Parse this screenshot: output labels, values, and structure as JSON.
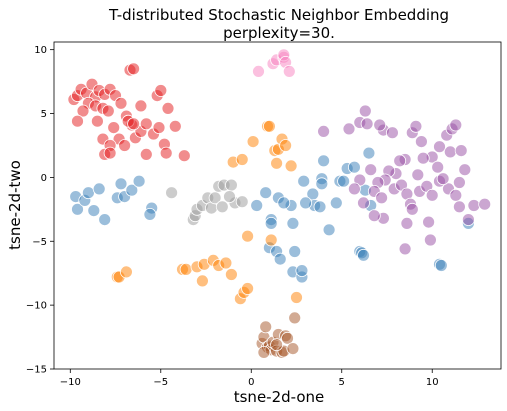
{
  "chart_data": {
    "type": "scatter",
    "title": "T-distributed Stochastic Neighbor Embedding",
    "subtitle": "perplexity=30.",
    "xlabel": "tsne-2d-one",
    "ylabel": "tsne-2d-two",
    "xlim": [
      -10.9,
      13.8
    ],
    "ylim": [
      -15,
      10.6
    ],
    "xticks": [
      -10,
      -5,
      0,
      5,
      10
    ],
    "yticks": [
      -15,
      -10,
      -5,
      0,
      5,
      10
    ],
    "grid": false,
    "legend": "none",
    "marker_alpha": 0.5,
    "series": [
      {
        "color": "#e41a1c",
        "points": [
          [
            -9.8,
            6.1
          ],
          [
            -9.6,
            6.4
          ],
          [
            -9.4,
            6.9
          ],
          [
            -9.1,
            6.6
          ],
          [
            -8.8,
            7.3
          ],
          [
            -8.6,
            6.3
          ],
          [
            -8.4,
            6.8
          ],
          [
            -8.1,
            6.5
          ],
          [
            -7.8,
            6.9
          ],
          [
            -7.5,
            6.4
          ],
          [
            -7.2,
            5.8
          ],
          [
            -9.0,
            5.8
          ],
          [
            -8.6,
            5.6
          ],
          [
            -8.2,
            5.4
          ],
          [
            -7.9,
            5.2
          ],
          [
            -9.3,
            5.2
          ],
          [
            -9.6,
            4.4
          ],
          [
            -8.5,
            4.4
          ],
          [
            -7.6,
            3.9
          ],
          [
            -8.2,
            3.0
          ],
          [
            -7.3,
            3.0
          ],
          [
            -6.9,
            4.8
          ],
          [
            -6.6,
            4.1
          ],
          [
            -6.4,
            3.1
          ],
          [
            -6.1,
            3.6
          ],
          [
            -5.8,
            4.2
          ],
          [
            -5.4,
            3.4
          ],
          [
            -5.1,
            3.9
          ],
          [
            -4.8,
            2.6
          ],
          [
            -4.7,
            1.9
          ],
          [
            -4.2,
            4.0
          ],
          [
            -3.7,
            1.7
          ],
          [
            -5.2,
            6.4
          ],
          [
            -5.0,
            6.8
          ],
          [
            -6.7,
            8.4
          ],
          [
            -6.5,
            8.5
          ],
          [
            -6.1,
            5.6
          ],
          [
            -7.0,
            2.5
          ],
          [
            -7.8,
            2.5
          ],
          [
            -8.1,
            1.8
          ],
          [
            -7.8,
            1.9
          ],
          [
            -5.8,
            1.8
          ],
          [
            -4.6,
            5.4
          ],
          [
            -6.8,
            4.4
          ],
          [
            -6.5,
            4.2
          ]
        ]
      },
      {
        "color": "#377eb8",
        "points": [
          [
            -9.7,
            -1.5
          ],
          [
            -9.6,
            -2.5
          ],
          [
            -9.2,
            -1.8
          ],
          [
            -9.0,
            -1.2
          ],
          [
            -8.7,
            -2.6
          ],
          [
            -8.4,
            -0.9
          ],
          [
            -8.1,
            -3.3
          ],
          [
            -7.4,
            -1.6
          ],
          [
            -7.2,
            -0.5
          ],
          [
            -7.0,
            -1.5
          ],
          [
            -6.6,
            -1.0
          ],
          [
            -6.2,
            -0.3
          ],
          [
            -5.5,
            -2.4
          ],
          [
            -5.6,
            -2.9
          ],
          [
            0.3,
            -2.2
          ],
          [
            0.8,
            -1.2
          ],
          [
            1.0,
            -5.5
          ],
          [
            1.1,
            -3.3
          ],
          [
            1.1,
            -3.6
          ],
          [
            1.4,
            -5.8
          ],
          [
            1.5,
            -1.6
          ],
          [
            1.6,
            -6.4
          ],
          [
            2.2,
            -2.2
          ],
          [
            2.3,
            -3.6
          ],
          [
            2.4,
            -5.8
          ],
          [
            2.3,
            -7.4
          ],
          [
            2.8,
            -7.8
          ],
          [
            2.8,
            -7.3
          ],
          [
            2.9,
            -0.3
          ],
          [
            3.4,
            -1.3
          ],
          [
            3.5,
            -2.2
          ],
          [
            3.8,
            -2.3
          ],
          [
            3.9,
            -0.1
          ],
          [
            3.9,
            -0.5
          ],
          [
            4.0,
            1.3
          ],
          [
            4.3,
            -4.1
          ],
          [
            4.7,
            -2.0
          ],
          [
            4.9,
            -0.3
          ],
          [
            5.1,
            -0.3
          ],
          [
            5.3,
            0.7
          ],
          [
            5.7,
            0.8
          ],
          [
            6.0,
            -5.8
          ],
          [
            6.1,
            -5.9
          ],
          [
            6.3,
            -1.0
          ],
          [
            6.6,
            -2.2
          ],
          [
            6.5,
            1.9
          ],
          [
            6.2,
            -6.1
          ],
          [
            10.4,
            -6.8
          ],
          [
            10.5,
            -6.9
          ],
          [
            12.0,
            -3.6
          ],
          [
            1.8,
            -2.0
          ],
          [
            3.0,
            -2.0
          ]
        ]
      },
      {
        "color": "#984ea3",
        "points": [
          [
            4.0,
            3.6
          ],
          [
            5.4,
            3.8
          ],
          [
            6.0,
            4.3
          ],
          [
            6.3,
            5.2
          ],
          [
            6.4,
            4.2
          ],
          [
            7.3,
            3.7
          ],
          [
            7.1,
            4.1
          ],
          [
            7.8,
            3.5
          ],
          [
            8.9,
            3.5
          ],
          [
            9.1,
            4.0
          ],
          [
            9.4,
            2.8
          ],
          [
            10.4,
            2.4
          ],
          [
            10.8,
            3.3
          ],
          [
            11.1,
            3.8
          ],
          [
            11.3,
            4.1
          ],
          [
            11.0,
            2.0
          ],
          [
            11.6,
            2.1
          ],
          [
            10.0,
            1.6
          ],
          [
            10.3,
            0.8
          ],
          [
            8.5,
            1.4
          ],
          [
            8.2,
            1.3
          ],
          [
            9.5,
            1.5
          ],
          [
            8.0,
            0.3
          ],
          [
            7.6,
            0.5
          ],
          [
            7.4,
            -0.2
          ],
          [
            7.0,
            -0.4
          ],
          [
            6.8,
            -1.1
          ],
          [
            6.6,
            0.6
          ],
          [
            6.0,
            -0.2
          ],
          [
            5.7,
            -0.9
          ],
          [
            6.2,
            -2.0
          ],
          [
            7.2,
            -1.6
          ],
          [
            7.9,
            -0.9
          ],
          [
            8.3,
            -0.6
          ],
          [
            8.6,
            -1.3
          ],
          [
            8.8,
            -2.1
          ],
          [
            8.9,
            -2.5
          ],
          [
            9.3,
            -1.1
          ],
          [
            9.7,
            -0.7
          ],
          [
            10.0,
            -1.4
          ],
          [
            10.4,
            -0.3
          ],
          [
            10.9,
            -0.9
          ],
          [
            11.3,
            -1.4
          ],
          [
            11.5,
            -0.4
          ],
          [
            11.8,
            0.6
          ],
          [
            12.3,
            -2.2
          ],
          [
            12.9,
            -2.1
          ],
          [
            9.8,
            -3.5
          ],
          [
            9.9,
            -4.9
          ],
          [
            8.6,
            -3.6
          ],
          [
            8.5,
            -5.6
          ],
          [
            7.3,
            -3.2
          ],
          [
            6.8,
            -3.0
          ],
          [
            11.5,
            -2.3
          ],
          [
            12.0,
            -3.3
          ],
          [
            9.2,
            0.2
          ],
          [
            10.6,
            -0.1
          ]
        ]
      },
      {
        "color": "#ff7f00",
        "points": [
          [
            -7.4,
            -7.8
          ],
          [
            -7.3,
            -7.8
          ],
          [
            -6.9,
            -7.4
          ],
          [
            -3.8,
            -7.2
          ],
          [
            -3.6,
            -7.2
          ],
          [
            -3.0,
            -7.0
          ],
          [
            -2.6,
            -6.8
          ],
          [
            -2.7,
            -8.1
          ],
          [
            -2.1,
            -6.5
          ],
          [
            -1.8,
            -6.9
          ],
          [
            -1.4,
            -6.7
          ],
          [
            -1.1,
            -7.6
          ],
          [
            -0.6,
            -9.5
          ],
          [
            -0.4,
            -9.0
          ],
          [
            -0.2,
            -8.7
          ],
          [
            -0.2,
            -4.6
          ],
          [
            0.1,
            2.8
          ],
          [
            0.9,
            4.0
          ],
          [
            1.0,
            4.0
          ],
          [
            1.1,
            -4.9
          ],
          [
            1.3,
            2.1
          ],
          [
            1.5,
            2.2
          ],
          [
            1.4,
            1.1
          ],
          [
            1.7,
            3.0
          ],
          [
            1.9,
            2.5
          ],
          [
            2.2,
            0.9
          ],
          [
            2.5,
            -9.4
          ],
          [
            -1.0,
            1.2
          ],
          [
            -0.5,
            1.4
          ]
        ]
      },
      {
        "color": "#999999",
        "points": [
          [
            -4.4,
            -1.2
          ],
          [
            -3.2,
            -3.3
          ],
          [
            -3.1,
            -3.0
          ],
          [
            -3.0,
            -2.5
          ],
          [
            -2.7,
            -2.2
          ],
          [
            -2.4,
            -1.6
          ],
          [
            -2.2,
            -2.4
          ],
          [
            -2.0,
            -1.6
          ],
          [
            -1.8,
            -0.7
          ],
          [
            -1.5,
            -0.6
          ],
          [
            -1.1,
            -0.6
          ],
          [
            -0.9,
            -2.0
          ],
          [
            -0.5,
            -1.9
          ],
          [
            -1.2,
            -1.5
          ],
          [
            -1.6,
            -2.3
          ]
        ]
      },
      {
        "color": "#a65628",
        "points": [
          [
            0.6,
            -13.0
          ],
          [
            0.7,
            -12.5
          ],
          [
            0.8,
            -11.7
          ],
          [
            0.9,
            -13.3
          ],
          [
            1.0,
            -13.2
          ],
          [
            1.1,
            -13.5
          ],
          [
            1.2,
            -12.9
          ],
          [
            1.4,
            -13.6
          ],
          [
            1.5,
            -12.3
          ],
          [
            1.7,
            -13.7
          ],
          [
            1.8,
            -13.6
          ],
          [
            1.9,
            -12.4
          ],
          [
            2.0,
            -12.6
          ],
          [
            2.3,
            -13.4
          ],
          [
            2.4,
            -11.0
          ],
          [
            1.4,
            -13.1
          ],
          [
            0.7,
            -13.7
          ]
        ]
      },
      {
        "color": "#f781bf",
        "points": [
          [
            0.4,
            8.3
          ],
          [
            1.2,
            8.9
          ],
          [
            1.4,
            9.2
          ],
          [
            1.8,
            9.4
          ],
          [
            1.8,
            9.6
          ],
          [
            1.9,
            9.0
          ],
          [
            2.1,
            8.3
          ]
        ]
      }
    ]
  }
}
